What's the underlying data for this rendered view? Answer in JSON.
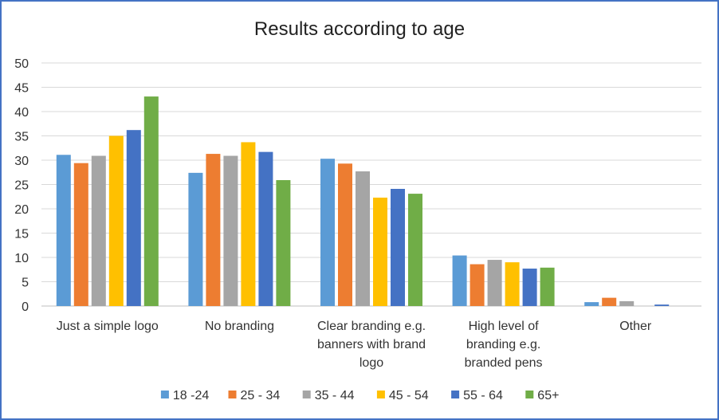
{
  "chart_data": {
    "type": "bar",
    "title": "Results according to age",
    "xlabel": "",
    "ylabel": "",
    "ylim": [
      0,
      50
    ],
    "yticks": [
      "0",
      "5",
      "10",
      "15",
      "20",
      "25",
      "30",
      "35",
      "40",
      "45",
      "50"
    ],
    "grid": true,
    "legend_position": "bottom",
    "categories": [
      "Just a simple logo",
      "No branding",
      "Clear branding e.g. banners with  brand logo",
      "High level of branding e.g. branded pens",
      "Other"
    ],
    "category_lines": [
      [
        "Just a simple logo"
      ],
      [
        "No branding"
      ],
      [
        "Clear branding e.g.",
        "banners with  brand",
        "logo"
      ],
      [
        "High level of",
        "branding e.g.",
        "branded pens"
      ],
      [
        "Other"
      ]
    ],
    "series": [
      {
        "name": "18 -24",
        "color": "#5B9BD5",
        "values": [
          31.1,
          27.4,
          30.3,
          10.4,
          0.8
        ]
      },
      {
        "name": "25 - 34",
        "color": "#ED7D31",
        "values": [
          29.4,
          31.3,
          29.3,
          8.6,
          1.7
        ]
      },
      {
        "name": "35 - 44",
        "color": "#A5A5A5",
        "values": [
          30.9,
          30.9,
          27.7,
          9.5,
          1.0
        ]
      },
      {
        "name": "45 - 54",
        "color": "#FFC000",
        "values": [
          35.0,
          33.7,
          22.3,
          9.0,
          0.0
        ]
      },
      {
        "name": "55 - 64",
        "color": "#4472C4",
        "values": [
          36.2,
          31.7,
          24.1,
          7.7,
          0.3
        ]
      },
      {
        "name": "65+",
        "color": "#70AD47",
        "values": [
          43.1,
          25.9,
          23.1,
          7.9,
          0.0
        ]
      }
    ]
  }
}
